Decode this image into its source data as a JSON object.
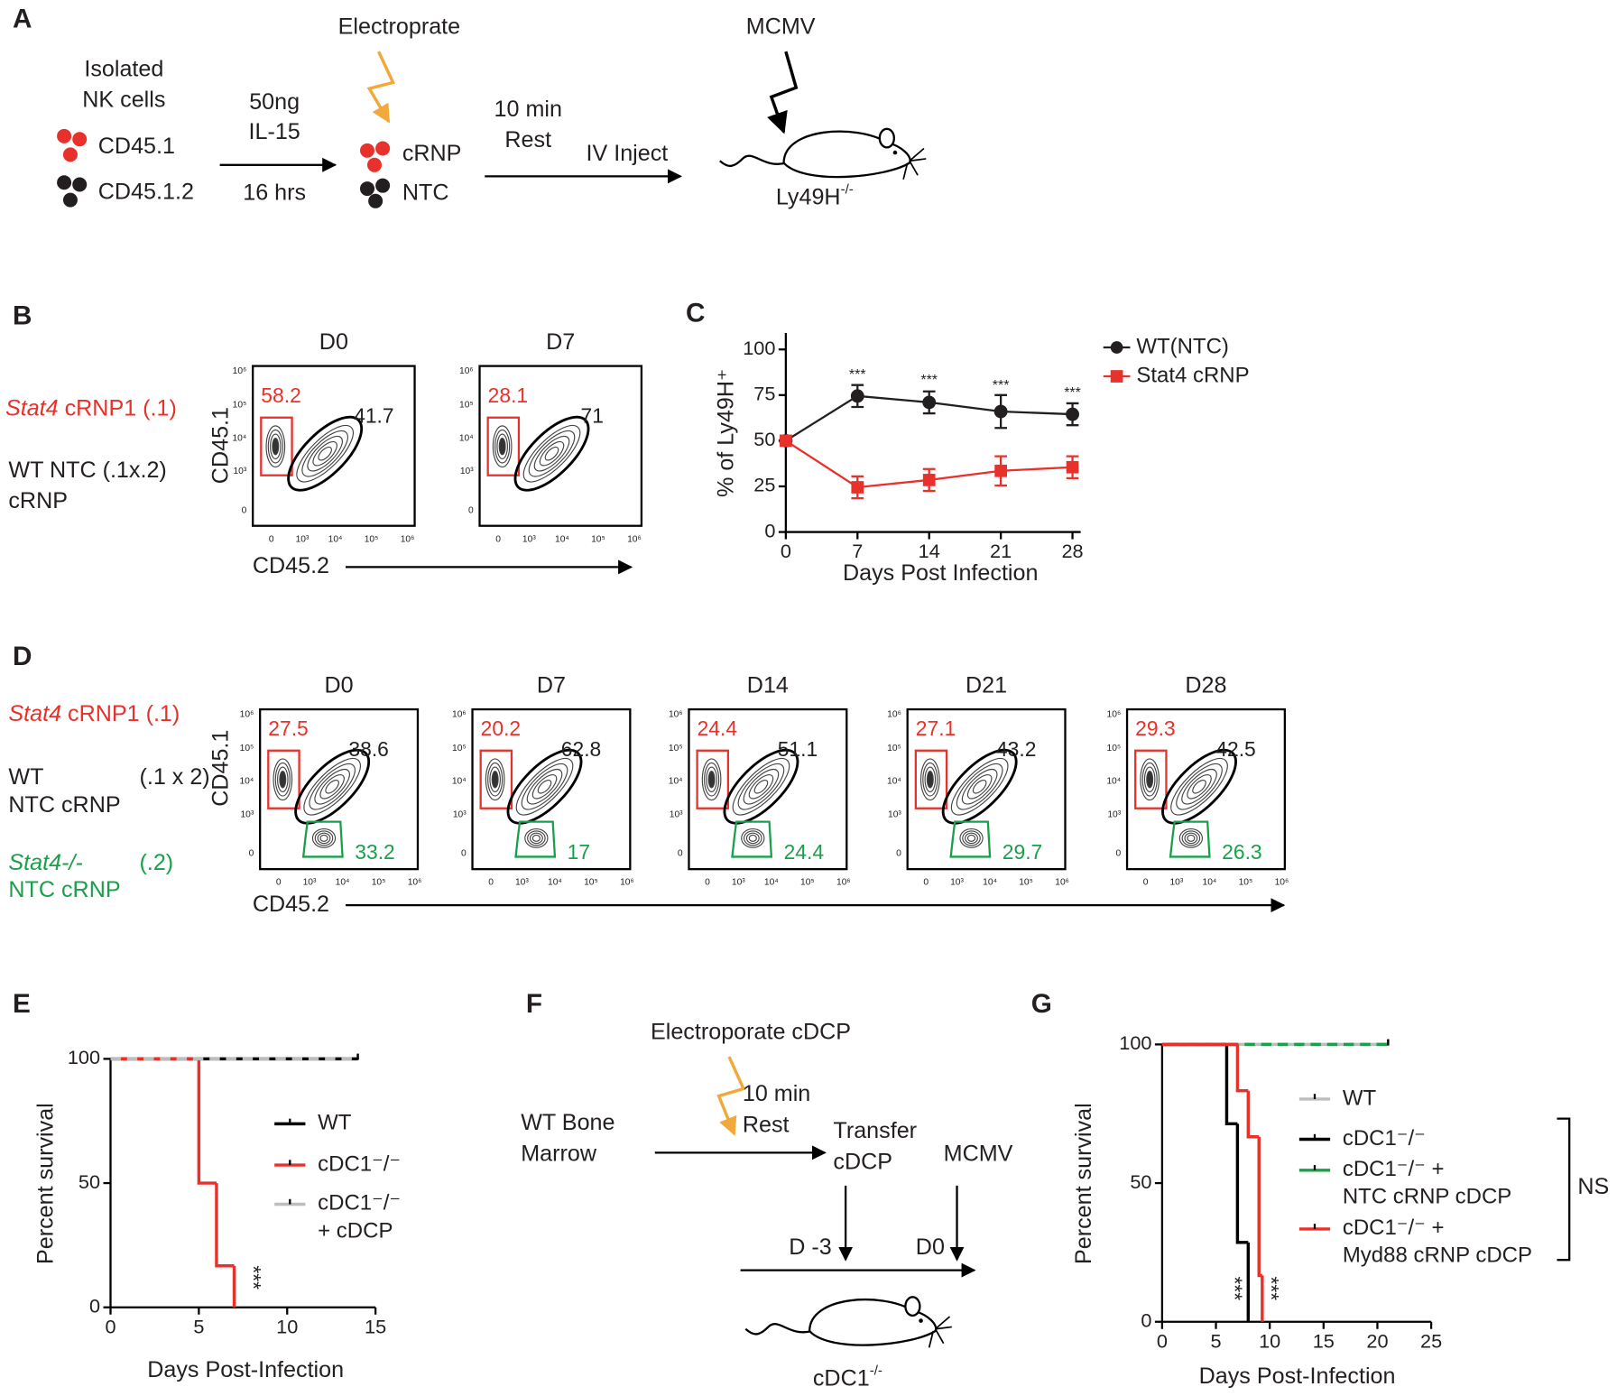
{
  "figure": {
    "a": {
      "letter": "A",
      "isolated": "Isolated",
      "nk": "NK cells",
      "cd451": "CD45.1",
      "cd4512": "CD45.1.2",
      "dose": "50ng",
      "cytokine": "IL-15",
      "duration": "16 hrs",
      "electroporate": "Electroprate",
      "crnp": "cRNP",
      "ntc": "NTC",
      "rest1": "10 min",
      "rest2": "Rest",
      "inject": "IV Inject",
      "virus": "MCMV",
      "host": "Ly49H",
      "host_sup": "-/-"
    },
    "flow_ticks": [
      "0",
      "10³",
      "10⁴",
      "10⁵",
      "10⁶"
    ],
    "b": {
      "letter": "B",
      "stat4": "Stat4",
      "crnp1": " cRNP1 (.1)",
      "wt": "WT NTC (.1x.2)",
      "crnp": "cRNP",
      "y_axis": "CD45.1",
      "x_axis": "CD45.2",
      "plots": [
        {
          "title": "D0",
          "red": 58.2,
          "black": 41.7
        },
        {
          "title": "D7",
          "red": 28.1,
          "black": 71
        }
      ]
    },
    "d": {
      "letter": "D",
      "stat4": "Stat4",
      "crnp1": " cRNP1 (.1)",
      "wt": "WT",
      "wt_ratio": "(.1 x 2)",
      "ntc": "NTC cRNP",
      "ko": "Stat4-/-",
      "ko_ratio": "(.2)",
      "ko_ntc": "NTC cRNP",
      "y_axis": "CD45.1",
      "x_axis": "CD45.2",
      "plots": [
        {
          "title": "D0",
          "red": 27.5,
          "black": 38.6,
          "green": 33.2
        },
        {
          "title": "D7",
          "red": 20.2,
          "black": 62.8,
          "green": 17
        },
        {
          "title": "D14",
          "red": 24.4,
          "black": 51.1,
          "green": 24.4
        },
        {
          "title": "D21",
          "red": 27.1,
          "black": 43.2,
          "green": 29.7
        },
        {
          "title": "D28",
          "red": 29.3,
          "black": 42.5,
          "green": 26.3
        }
      ]
    },
    "f": {
      "letter": "F",
      "electroporate": "Electroporate cDCP",
      "bm1": "WT Bone",
      "bm2": "Marrow",
      "rest1": "10 min",
      "rest2": "Rest",
      "transfer1": "Transfer",
      "transfer2": "cDCP",
      "virus": "MCMV",
      "d3": "D -3",
      "d0": "D0",
      "host": "cDC1",
      "host_sup": "-/-"
    }
  },
  "chart_data": [
    {
      "type": "line",
      "panel": "C",
      "xlabel": "Days Post Infection",
      "ylabel": "% of Ly49H⁺",
      "x": [
        0,
        7,
        14,
        21,
        28
      ],
      "xlim": [
        0,
        28.8
      ],
      "ylim": [
        0,
        109
      ],
      "xticks": [
        0,
        7,
        14,
        21,
        28
      ],
      "yticks": [
        0,
        25,
        50,
        75,
        100
      ],
      "series": [
        {
          "name": "WT(NTC)",
          "color": "#231f20",
          "marker": "circle",
          "values": [
            50,
            74.5,
            71,
            66,
            64.5
          ],
          "errors": [
            null,
            6,
            6,
            9,
            6
          ]
        },
        {
          "name": "Stat4 cRNP",
          "color": "#e8312a",
          "marker": "square",
          "values": [
            50,
            24.5,
            28.5,
            33.5,
            35.5
          ],
          "errors": [
            null,
            6,
            6,
            8,
            6
          ]
        }
      ],
      "annotations": [
        {
          "x": 7,
          "y": 86,
          "text": "***"
        },
        {
          "x": 14,
          "y": 83,
          "text": "***"
        },
        {
          "x": 21,
          "y": 80,
          "text": "***"
        },
        {
          "x": 28,
          "y": 76,
          "text": "***"
        }
      ]
    },
    {
      "type": "survival",
      "panel": "E",
      "xlabel": "Days Post-Infection",
      "ylabel": "Percent survival",
      "xlim": [
        0,
        15
      ],
      "ylim": [
        0,
        100
      ],
      "xticks": [
        0,
        5,
        10,
        15
      ],
      "yticks": [
        0,
        50,
        100
      ],
      "series": [
        {
          "name": "WT",
          "color": "#000000",
          "dashed": false,
          "x": [
            0,
            14
          ],
          "values": [
            100,
            100
          ]
        },
        {
          "name": "cDC1⁻/⁻",
          "color": "#e8312a",
          "dashed": false,
          "x": [
            0,
            5,
            6,
            7
          ],
          "values": [
            100,
            50,
            16.7,
            0
          ]
        },
        {
          "name": "cDC1⁻/⁻\n+ cDCP",
          "color": "#bdbdbd",
          "dashed": true,
          "x": [
            0,
            14
          ],
          "values": [
            100,
            100
          ]
        }
      ],
      "annotations": [
        {
          "x": 8,
          "y": 12,
          "text": "***"
        }
      ]
    },
    {
      "type": "survival",
      "panel": "G",
      "xlabel": "Days Post-Infection",
      "ylabel": "Percent survival",
      "xlim": [
        0,
        25
      ],
      "ylim": [
        0,
        100
      ],
      "xticks": [
        0,
        5,
        10,
        15,
        20,
        25
      ],
      "yticks": [
        0,
        50,
        100
      ],
      "series": [
        {
          "name": "WT",
          "color": "#bdbdbd",
          "dashed": false,
          "x": [
            0,
            21
          ],
          "values": [
            100,
            100
          ]
        },
        {
          "name": "cDC1⁻/⁻",
          "color": "#000000",
          "dashed": false,
          "x": [
            0,
            6,
            7,
            8
          ],
          "values": [
            100,
            71.4,
            28.6,
            0
          ]
        },
        {
          "name": "cDC1⁻/⁻ +\nNTC cRNP cDCP",
          "color": "#1a9f4a",
          "dashed": true,
          "x": [
            0,
            21
          ],
          "values": [
            100,
            100
          ]
        },
        {
          "name": "cDC1⁻/⁻ +\nMyd88 cRNP cDCP",
          "color": "#e8312a",
          "dashed": false,
          "x": [
            0,
            7,
            8,
            9,
            9.3
          ],
          "values": [
            100,
            83.3,
            66.7,
            16.7,
            0
          ]
        }
      ],
      "annotations": [
        {
          "x": 6.6,
          "y": 12,
          "text": "***"
        },
        {
          "x": 10,
          "y": 12,
          "text": "***"
        }
      ],
      "bracket_label": "NS"
    }
  ]
}
